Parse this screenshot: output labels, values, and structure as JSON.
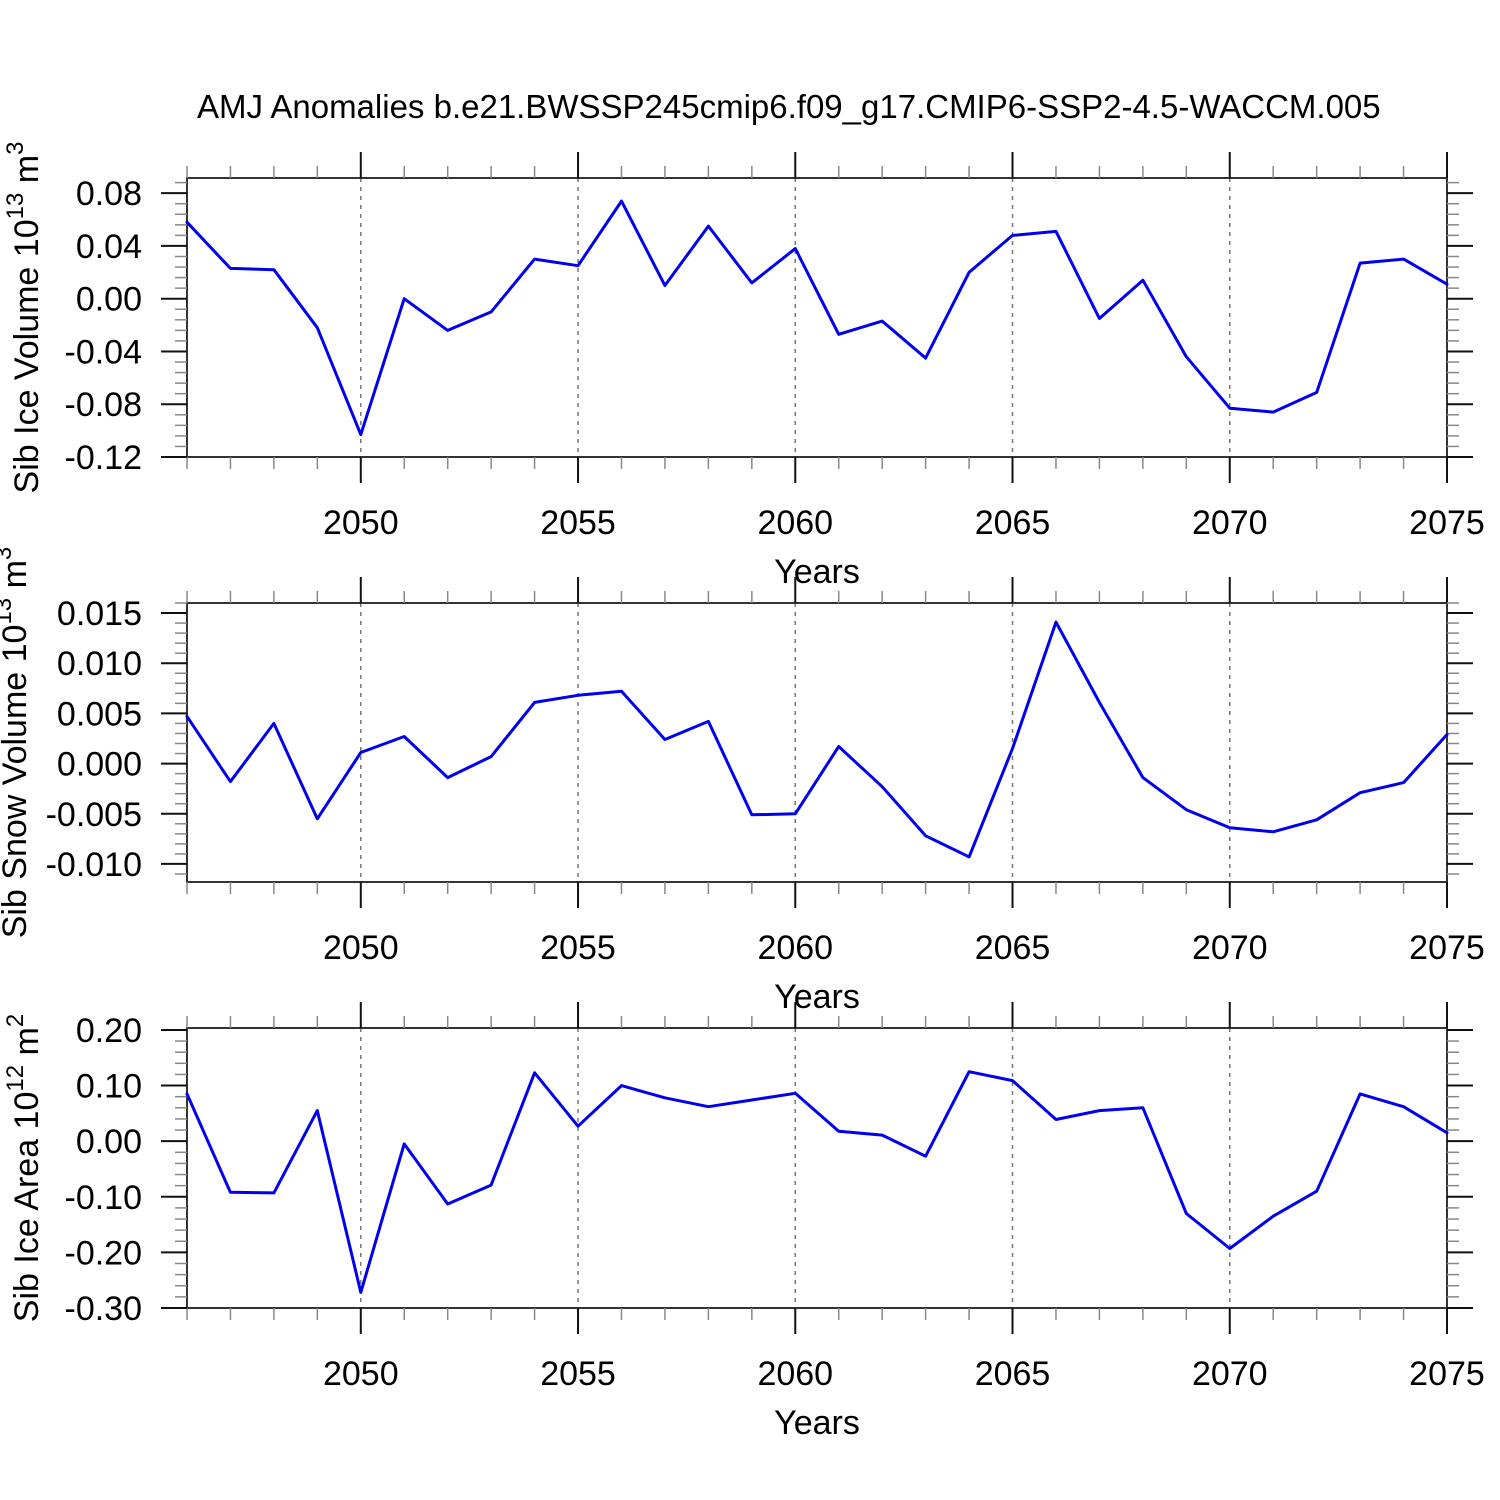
{
  "title": "AMJ Anomalies b.e21.BWSSP245cmip6.f09_g17.CMIP6-SSP2-4.5-WACCM.005",
  "xlabel": "Years",
  "line_color": "#0000EE",
  "grid_color": "#777777",
  "chart_data": [
    {
      "type": "line",
      "name": "sib-ice-volume",
      "ylabel": "Sib Ice Volume 10^13 m^3",
      "ylabel_parts": [
        [
          "Sib Ice Volume 10",
          false
        ],
        [
          "13",
          true
        ],
        [
          " m",
          false
        ],
        [
          "3",
          true
        ]
      ],
      "xlabel": "Years",
      "x": [
        2046,
        2047,
        2048,
        2049,
        2050,
        2051,
        2052,
        2053,
        2054,
        2055,
        2056,
        2057,
        2058,
        2059,
        2060,
        2061,
        2062,
        2063,
        2064,
        2065,
        2066,
        2067,
        2068,
        2069,
        2070,
        2071,
        2072,
        2073,
        2074,
        2075
      ],
      "values": [
        0.058,
        0.023,
        0.022,
        -0.022,
        -0.103,
        0.0,
        -0.024,
        -0.01,
        0.03,
        0.025,
        0.074,
        0.01,
        0.055,
        0.012,
        0.038,
        -0.027,
        -0.017,
        -0.045,
        0.02,
        0.048,
        0.051,
        -0.015,
        0.014,
        -0.044,
        -0.083,
        -0.086,
        -0.071,
        0.027,
        0.03,
        0.011
      ],
      "xlim": [
        2046,
        2075
      ],
      "ylim": [
        -0.12,
        0.0915
      ],
      "x_major_ticks": [
        2050,
        2055,
        2060,
        2065,
        2070,
        2075
      ],
      "x_tick_labels": [
        "2050",
        "2055",
        "2060",
        "2065",
        "2070",
        "2075"
      ],
      "x_minor_step": 1,
      "x_gridlines": [
        2050,
        2055,
        2060,
        2065,
        2070
      ],
      "y_major_ticks": [
        0.08,
        0.04,
        0.0,
        -0.04,
        -0.08,
        -0.12
      ],
      "y_tick_labels": [
        "0.08",
        "0.04",
        "0.00",
        "-0.04",
        "-0.08",
        "-0.12"
      ],
      "y_minor_step": 0.008,
      "grid": "vertical-dashed",
      "legend_position": "none"
    },
    {
      "type": "line",
      "name": "sib-snow-volume",
      "ylabel": "Sib Snow Volume 10^13 m^3",
      "ylabel_parts": [
        [
          "Sib Snow Volume 10",
          false
        ],
        [
          "13",
          true
        ],
        [
          " m",
          false
        ],
        [
          "3",
          true
        ]
      ],
      "xlabel": "Years",
      "x": [
        2046,
        2047,
        2048,
        2049,
        2050,
        2051,
        2052,
        2053,
        2054,
        2055,
        2056,
        2057,
        2058,
        2059,
        2060,
        2061,
        2062,
        2063,
        2064,
        2065,
        2066,
        2067,
        2068,
        2069,
        2070,
        2071,
        2072,
        2073,
        2074,
        2075
      ],
      "values": [
        0.0047,
        -0.0018,
        0.004,
        -0.0055,
        0.0011,
        0.0027,
        -0.0014,
        0.0007,
        0.0061,
        0.0068,
        0.0072,
        0.0024,
        0.0042,
        -0.0051,
        -0.005,
        0.0017,
        -0.0023,
        -0.0072,
        -0.0093,
        0.0015,
        0.0141,
        0.0061,
        -0.0014,
        -0.0046,
        -0.0064,
        -0.0068,
        -0.0056,
        -0.0029,
        -0.0019,
        0.0029
      ],
      "xlim": [
        2046,
        2075
      ],
      "ylim": [
        -0.0118,
        0.016
      ],
      "x_major_ticks": [
        2050,
        2055,
        2060,
        2065,
        2070,
        2075
      ],
      "x_tick_labels": [
        "2050",
        "2055",
        "2060",
        "2065",
        "2070",
        "2075"
      ],
      "x_minor_step": 1,
      "x_gridlines": [
        2050,
        2055,
        2060,
        2065,
        2070
      ],
      "y_major_ticks": [
        0.015,
        0.01,
        0.005,
        0.0,
        -0.005,
        -0.01
      ],
      "y_tick_labels": [
        "0.015",
        "0.010",
        "0.005",
        "0.000",
        "-0.005",
        "-0.010"
      ],
      "y_minor_step": 0.001,
      "grid": "vertical-dashed",
      "legend_position": "none"
    },
    {
      "type": "line",
      "name": "sib-ice-area",
      "ylabel": "Sib Ice Area 10^12 m^2",
      "ylabel_parts": [
        [
          "Sib Ice Area 10",
          false
        ],
        [
          "12",
          true
        ],
        [
          " m",
          false
        ],
        [
          "2",
          true
        ]
      ],
      "xlabel": "Years",
      "x": [
        2046,
        2047,
        2048,
        2049,
        2050,
        2051,
        2052,
        2053,
        2054,
        2055,
        2056,
        2057,
        2058,
        2059,
        2060,
        2061,
        2062,
        2063,
        2064,
        2065,
        2066,
        2067,
        2068,
        2069,
        2070,
        2071,
        2072,
        2073,
        2074,
        2075
      ],
      "values": [
        0.085,
        -0.092,
        -0.093,
        0.055,
        -0.272,
        -0.005,
        -0.113,
        -0.079,
        0.123,
        0.027,
        0.1,
        0.078,
        0.062,
        0.074,
        0.086,
        0.018,
        0.011,
        -0.027,
        0.125,
        0.109,
        0.039,
        0.055,
        0.06,
        -0.13,
        -0.193,
        -0.135,
        -0.09,
        0.085,
        0.062,
        0.015
      ],
      "xlim": [
        2046,
        2075
      ],
      "ylim": [
        -0.3,
        0.2035
      ],
      "x_major_ticks": [
        2050,
        2055,
        2060,
        2065,
        2070,
        2075
      ],
      "x_tick_labels": [
        "2050",
        "2055",
        "2060",
        "2065",
        "2070",
        "2075"
      ],
      "x_minor_step": 1,
      "x_gridlines": [
        2050,
        2055,
        2060,
        2065,
        2070
      ],
      "y_major_ticks": [
        0.2,
        0.1,
        0.0,
        -0.1,
        -0.2,
        -0.3
      ],
      "y_tick_labels": [
        "0.20",
        "0.10",
        "0.00",
        "-0.10",
        "-0.20",
        "-0.30"
      ],
      "y_minor_step": 0.02,
      "grid": "vertical-dashed",
      "legend_position": "none"
    }
  ]
}
